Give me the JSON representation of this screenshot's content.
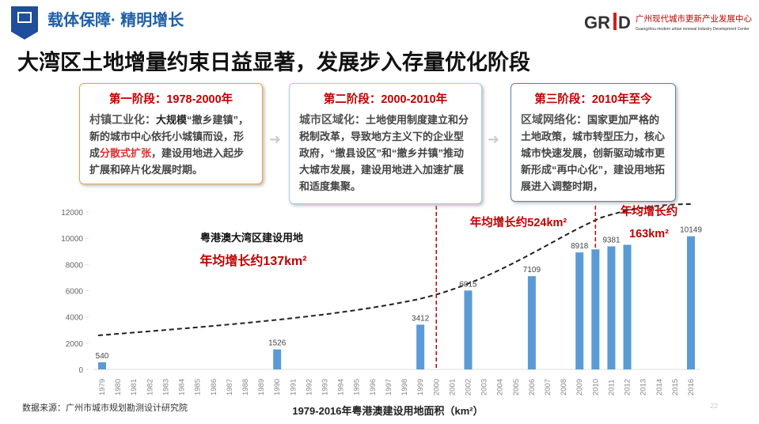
{
  "header": {
    "section": "载体保障· 精明增长",
    "logo_left": "GR",
    "logo_right": "D",
    "org_cn": "广州现代城市更新产业发展中心",
    "org_en": "Guangzhou modern urban renewal Industry Development Center"
  },
  "title": "大湾区土地增量约束日益显著，发展步入存量优化阶段",
  "stages": [
    {
      "title": "第一阶段：1978-2000年",
      "segments": [
        {
          "t": "村镇工业化：",
          "s": "h"
        },
        {
          "t": "大规模",
          "s": "b"
        },
        {
          "t": "“撤乡建镇”，新的城市中心依托小城镇而设，形成",
          "s": "n"
        },
        {
          "t": "分散式扩张",
          "s": "r"
        },
        {
          "t": "，建设用地进入起步扩展和碎片化发展时期。",
          "s": "n"
        }
      ]
    },
    {
      "title": "第二阶段：2000-2010年",
      "segments": [
        {
          "t": "城市区域化：",
          "s": "h"
        },
        {
          "t": "土地使用制度建立和分税制改革，导致地方主义下的企业型政府，“撤县设区”和“撤乡并镇”推动大城市发展，建设用地进入加速扩展和适度集聚。",
          "s": "n"
        }
      ]
    },
    {
      "title": "第三阶段：2010年至今",
      "segments": [
        {
          "t": "区域网络化：",
          "s": "h"
        },
        {
          "t": "国家更加严格的土地政策，城市转型压力，核心城市快速发展，创新驱动城市更新形成“再中心化”，建设用地拓展进入调整时期，",
          "s": "n"
        }
      ]
    }
  ],
  "chart_data": {
    "type": "bar",
    "color": "#5b9bd5",
    "categories": [
      "1979",
      "1980",
      "1981",
      "1982",
      "1983",
      "1984",
      "1985",
      "1986",
      "1987",
      "1988",
      "1989",
      "1990",
      "1991",
      "1992",
      "1993",
      "1994",
      "1995",
      "1996",
      "1997",
      "1998",
      "1999",
      "2000",
      "2001",
      "2002",
      "2003",
      "2004",
      "2005",
      "2006",
      "2007",
      "2008",
      "2009",
      "2010",
      "2011",
      "2012",
      "2013",
      "2014",
      "2015",
      "2016"
    ],
    "values": [
      540,
      null,
      null,
      null,
      null,
      null,
      null,
      null,
      null,
      null,
      null,
      1526,
      null,
      null,
      null,
      null,
      null,
      null,
      null,
      null,
      3412,
      null,
      null,
      6015,
      null,
      null,
      null,
      7109,
      null,
      null,
      8918,
      9150,
      9381,
      9500,
      null,
      null,
      null,
      10149
    ],
    "value_labels": [
      "540",
      null,
      null,
      null,
      null,
      null,
      null,
      null,
      null,
      null,
      null,
      "1526",
      null,
      null,
      null,
      null,
      null,
      null,
      null,
      null,
      "3412",
      null,
      null,
      "6015",
      null,
      null,
      null,
      "7109",
      null,
      null,
      "8918",
      null,
      "9381",
      null,
      null,
      null,
      null,
      "10149"
    ],
    "ylim": [
      0,
      12000
    ],
    "yticks": [
      0,
      2000,
      4000,
      6000,
      8000,
      10000,
      12000
    ],
    "annotations": [
      "粤港澳大湾区建设用地",
      "年均增长约137km²",
      "年均增长约524km²",
      "年均增长约",
      "163km²"
    ],
    "caption": "1979-2016年粤港澳建设用地面积（km²）"
  },
  "source": "数据来源：广州市城市规划勘测设计研究院",
  "page": "22"
}
